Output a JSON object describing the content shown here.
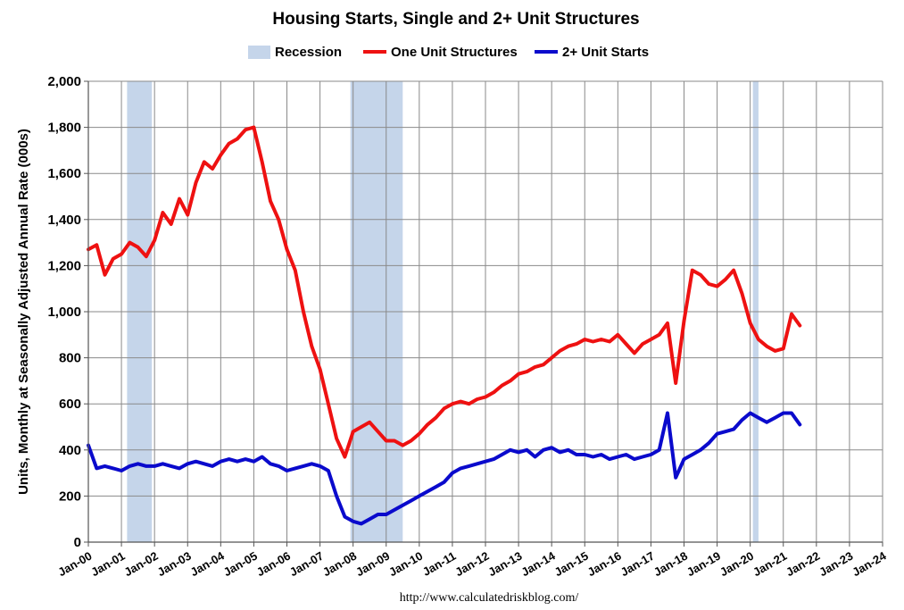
{
  "chart_data": {
    "type": "line",
    "title": "Housing Starts, Single and 2+ Unit Structures",
    "ylabel": "Units, Monthly at Seasonally Adjusted Annual Rate (000s)",
    "source_text": "http://www.calculatedriskblog.com/",
    "ylim": [
      0,
      2000
    ],
    "yticks": [
      0,
      200,
      400,
      600,
      800,
      1000,
      1200,
      1400,
      1600,
      1800,
      2000
    ],
    "ytick_labels": [
      "0",
      "200",
      "400",
      "600",
      "800",
      "1,000",
      "1,200",
      "1,400",
      "1,600",
      "1,800",
      "2,000"
    ],
    "xlim": [
      2000.0,
      2024.0
    ],
    "xticks": [
      2000,
      2001,
      2002,
      2003,
      2004,
      2005,
      2006,
      2007,
      2008,
      2009,
      2010,
      2011,
      2012,
      2013,
      2014,
      2015,
      2016,
      2017,
      2018,
      2019,
      2020,
      2021,
      2022,
      2023,
      2024
    ],
    "xtick_labels": [
      "Jan-00",
      "Jan-01",
      "Jan-02",
      "Jan-03",
      "Jan-04",
      "Jan-05",
      "Jan-06",
      "Jan-07",
      "Jan-08",
      "Jan-09",
      "Jan-10",
      "Jan-11",
      "Jan-12",
      "Jan-13",
      "Jan-14",
      "Jan-15",
      "Jan-16",
      "Jan-17",
      "Jan-18",
      "Jan-19",
      "Jan-20",
      "Jan-21",
      "Jan-22",
      "Jan-23",
      "Jan-24"
    ],
    "grid": true,
    "legend_position": "top",
    "recessions": [
      {
        "start": 2001.17,
        "end": 2001.92
      },
      {
        "start": 2007.92,
        "end": 2009.5
      },
      {
        "start": 2020.08,
        "end": 2020.25
      }
    ],
    "legend": [
      {
        "name": "Recession",
        "color": "#c5d5ea",
        "kind": "box"
      },
      {
        "name": "One Unit Structures",
        "color": "#ee1111",
        "kind": "line"
      },
      {
        "name": "2+ Unit Starts",
        "color": "#0a0acc",
        "kind": "line"
      }
    ],
    "series": [
      {
        "name": "One Unit Structures",
        "color": "#ee1111",
        "x_start": 2000.0,
        "x_step": 0.25,
        "values": [
          1270,
          1290,
          1160,
          1230,
          1250,
          1300,
          1280,
          1240,
          1310,
          1430,
          1380,
          1490,
          1420,
          1560,
          1650,
          1620,
          1680,
          1730,
          1750,
          1790,
          1800,
          1650,
          1480,
          1400,
          1270,
          1180,
          1000,
          850,
          750,
          600,
          450,
          370,
          480,
          500,
          520,
          480,
          440,
          440,
          420,
          440,
          470,
          510,
          540,
          580,
          600,
          610,
          600,
          620,
          630,
          650,
          680,
          700,
          730,
          740,
          760,
          770,
          800,
          830,
          850,
          860,
          880,
          870,
          880,
          870,
          900,
          860,
          820,
          860,
          880,
          900,
          950,
          690,
          960,
          1180,
          1160,
          1120,
          1110,
          1140,
          1180,
          1080,
          950,
          880,
          850,
          830,
          840,
          990,
          940
        ]
      },
      {
        "name": "2+ Unit Starts",
        "color": "#0a0acc",
        "x_start": 2000.0,
        "x_step": 0.25,
        "values": [
          420,
          320,
          330,
          320,
          310,
          330,
          340,
          330,
          330,
          340,
          330,
          320,
          340,
          350,
          340,
          330,
          350,
          360,
          350,
          360,
          350,
          370,
          340,
          330,
          310,
          320,
          330,
          340,
          330,
          310,
          200,
          110,
          90,
          80,
          100,
          120,
          120,
          140,
          160,
          180,
          200,
          220,
          240,
          260,
          300,
          320,
          330,
          340,
          350,
          360,
          380,
          400,
          390,
          400,
          370,
          400,
          410,
          390,
          400,
          380,
          380,
          370,
          380,
          360,
          370,
          380,
          360,
          370,
          380,
          400,
          560,
          280,
          360,
          380,
          400,
          430,
          470,
          480,
          490,
          530,
          560,
          540,
          520,
          540,
          560,
          560,
          510
        ]
      }
    ]
  }
}
